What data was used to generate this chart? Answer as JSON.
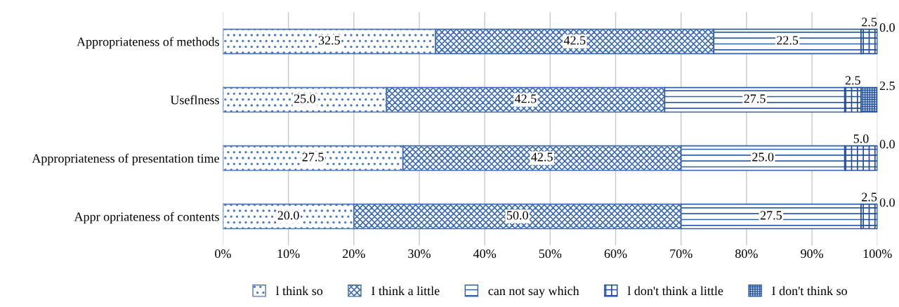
{
  "chart_data": {
    "type": "bar",
    "orientation": "horizontal",
    "stacked": true,
    "categories": [
      "Appropriateness of methods",
      "Useflness",
      "Appropriateness of presentation time",
      "Appr opriateness of contents"
    ],
    "series": [
      {
        "name": "l think so",
        "color": "#4a78c0",
        "values": [
          32.5,
          25.0,
          27.5,
          20.0
        ],
        "value_labels": [
          "32.5",
          "25.0",
          "27.5",
          "20.0"
        ]
      },
      {
        "name": "I think a little",
        "color": "#3a6ab8",
        "values": [
          42.5,
          42.5,
          42.5,
          50.0
        ],
        "value_labels": [
          "42.5",
          "42.5",
          "42.5",
          "50.0"
        ]
      },
      {
        "name": "can not say which",
        "color": "#2f5fb0",
        "values": [
          22.5,
          27.5,
          25.0,
          27.5
        ],
        "value_labels": [
          "22.5",
          "27.5",
          "25.0",
          "27.5"
        ]
      },
      {
        "name": "l don't think a little",
        "color": "#1f4e9e",
        "values": [
          2.5,
          2.5,
          5.0,
          2.5
        ],
        "value_labels": [
          "2.5",
          "2.5",
          "5.0",
          "2.5"
        ]
      },
      {
        "name": "I don't think so",
        "color": "#2a5aa8",
        "values": [
          0.0,
          2.5,
          0.0,
          0.0
        ],
        "value_labels": [
          "0.0",
          "2.5",
          "0.0",
          "0.0"
        ]
      }
    ],
    "xlim": [
      0,
      100
    ],
    "xticks": [
      {
        "value": 0,
        "label": "0%"
      },
      {
        "value": 10,
        "label": "10%"
      },
      {
        "value": 20,
        "label": "20%"
      },
      {
        "value": 30,
        "label": "30%"
      },
      {
        "value": 40,
        "label": "40%"
      },
      {
        "value": 50,
        "label": "50%"
      },
      {
        "value": 60,
        "label": "60%"
      },
      {
        "value": 70,
        "label": "70%"
      },
      {
        "value": 80,
        "label": "80%"
      },
      {
        "value": 90,
        "label": "90%"
      },
      {
        "value": 100,
        "label": "100%"
      }
    ],
    "grid": "x",
    "legend": "bottom"
  }
}
